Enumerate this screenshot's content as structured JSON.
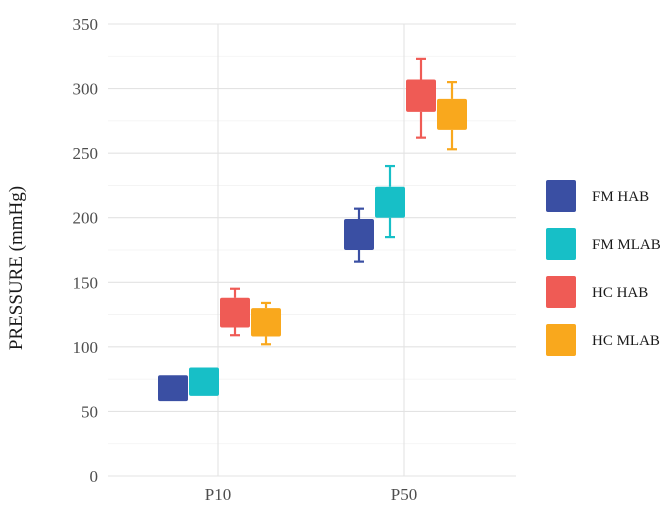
{
  "chart_data": {
    "type": "box",
    "title": "",
    "xlabel": "",
    "ylabel": "PRESSURE (mmHg)",
    "ylim": [
      0,
      350
    ],
    "yticks": [
      0,
      50,
      100,
      150,
      200,
      250,
      300,
      350
    ],
    "categories": [
      "P10",
      "P50"
    ],
    "grid": true,
    "legend_position": "right",
    "series": [
      {
        "name": "FM HAB",
        "color": "#3A4FA3",
        "boxes": [
          {
            "category": "P10",
            "min": 58,
            "q1": 58,
            "q3": 78,
            "max": 78
          },
          {
            "category": "P50",
            "min": 166,
            "q1": 175,
            "q3": 199,
            "max": 207
          }
        ]
      },
      {
        "name": "FM MLAB",
        "color": "#17BFC7",
        "boxes": [
          {
            "category": "P10",
            "min": 62,
            "q1": 62,
            "q3": 84,
            "max": 84
          },
          {
            "category": "P50",
            "min": 185,
            "q1": 200,
            "q3": 224,
            "max": 240
          }
        ]
      },
      {
        "name": "HC HAB",
        "color": "#EF5B55",
        "boxes": [
          {
            "category": "P10",
            "min": 109,
            "q1": 115,
            "q3": 138,
            "max": 145
          },
          {
            "category": "P50",
            "min": 262,
            "q1": 282,
            "q3": 307,
            "max": 323
          }
        ]
      },
      {
        "name": "HC MLAB",
        "color": "#F9A81D",
        "boxes": [
          {
            "category": "P10",
            "min": 102,
            "q1": 108,
            "q3": 130,
            "max": 134
          },
          {
            "category": "P50",
            "min": 253,
            "q1": 268,
            "q3": 292,
            "max": 305
          }
        ]
      }
    ]
  }
}
